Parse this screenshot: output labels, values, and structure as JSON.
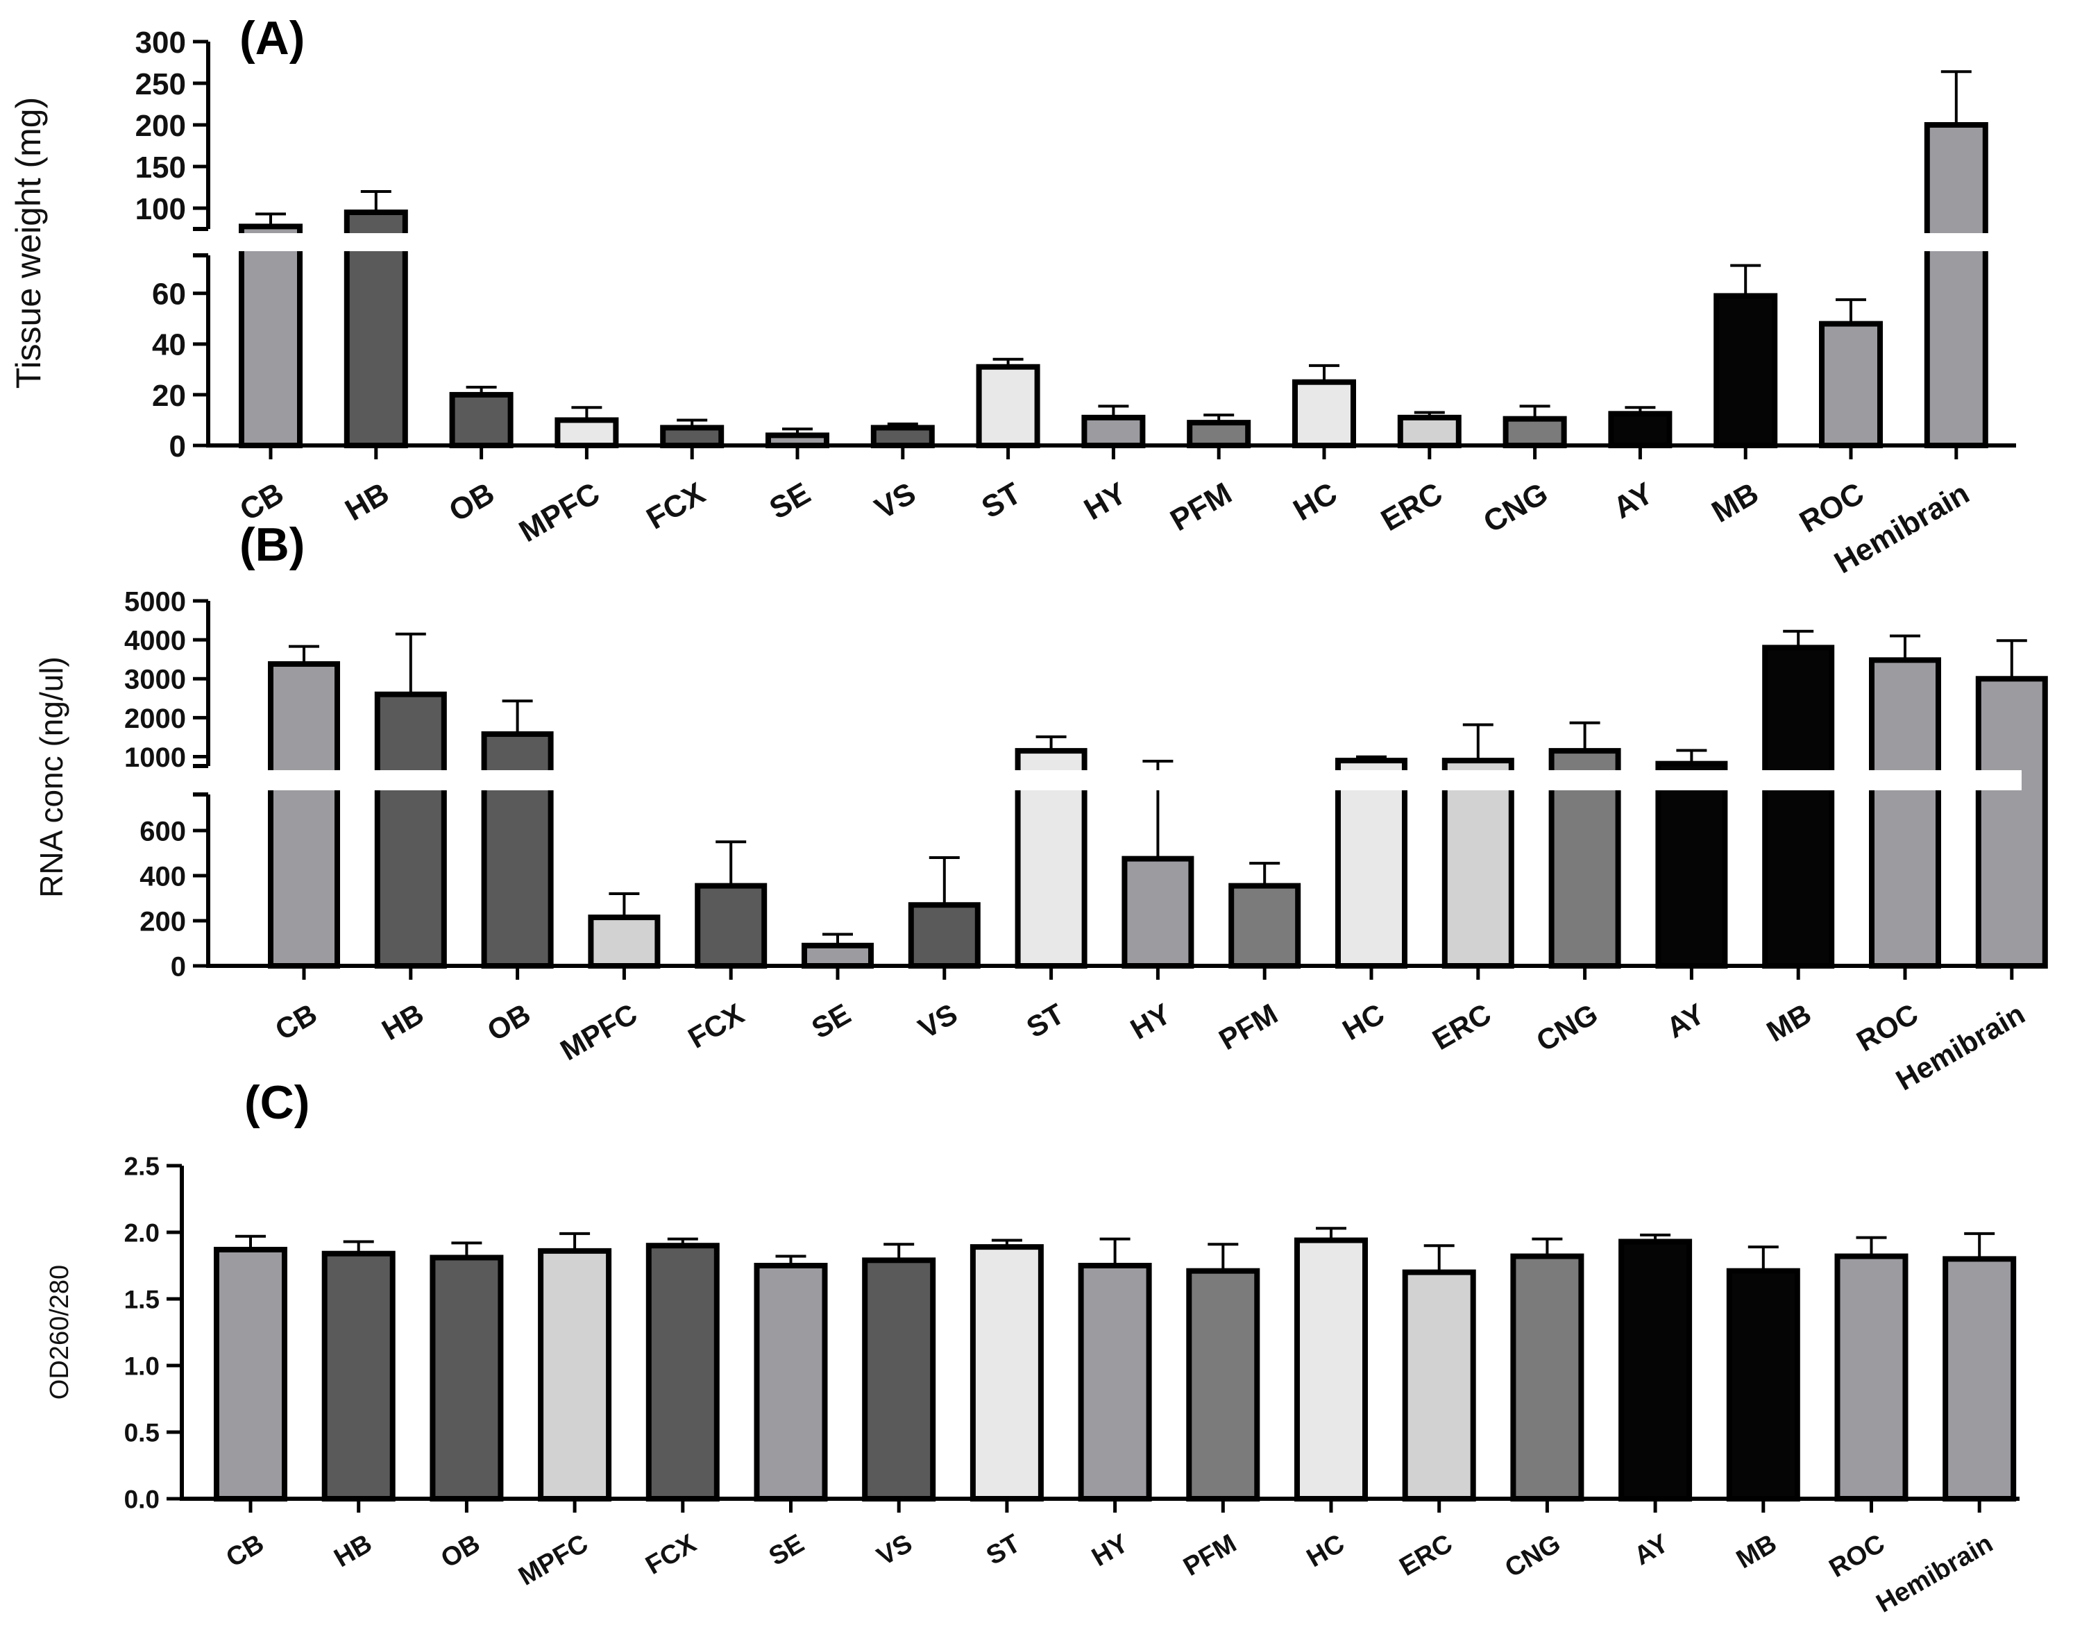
{
  "figure": {
    "colors": {
      "light": "#e8e8e8",
      "lightgray": "#d2d2d2",
      "medium": "#9b9ba0",
      "midgray": "#7b7b7b",
      "dark": "#5a5a5a",
      "black": "#050505"
    }
  },
  "chart_data": [
    {
      "type": "bar",
      "panel_label": "(A)",
      "ylabel": "Tissue weight (mg)",
      "categories": [
        "CB",
        "HB",
        "OB",
        "MPFC",
        "FCX",
        "SE",
        "VS",
        "ST",
        "HY",
        "PFM",
        "HC",
        "ERC",
        "CNG",
        "AY",
        "MB",
        "ROC",
        "Hemibrain"
      ],
      "values": [
        78,
        95,
        20,
        10,
        7,
        4,
        7,
        31,
        11,
        9,
        25,
        11,
        10.5,
        12.5,
        59,
        48,
        200
      ],
      "errors": [
        15,
        25,
        3,
        5,
        3,
        2.5,
        1.5,
        3,
        4.5,
        3,
        6.5,
        2,
        5,
        2.5,
        12,
        9.5,
        64
      ],
      "colors": [
        "medium",
        "dark",
        "dark",
        "light",
        "dark",
        "medium",
        "dark",
        "light",
        "medium",
        "midgray",
        "light",
        "lightgray",
        "midgray",
        "black",
        "black",
        "medium",
        "medium"
      ],
      "axis_break": true,
      "ylim_lower": [
        0,
        75
      ],
      "ylim_upper": [
        75,
        300
      ],
      "yticks_lower": [
        "0",
        "20",
        "40",
        "60"
      ],
      "yticks_upper": [
        "100",
        "150",
        "200",
        "250",
        "300"
      ]
    },
    {
      "type": "bar",
      "panel_label": "(B)",
      "ylabel": "RNA conc (ng/ul)",
      "categories": [
        "CB",
        "HB",
        "OB",
        "MPFC",
        "FCX",
        "SE",
        "VS",
        "ST",
        "HY",
        "PFM",
        "HC",
        "ERC",
        "CNG",
        "AY",
        "MB",
        "ROC",
        "Hemibrain"
      ],
      "values": [
        3380,
        2600,
        1580,
        215,
        355,
        90,
        270,
        1150,
        475,
        355,
        900,
        900,
        1150,
        820,
        3800,
        3480,
        3000
      ],
      "errors": [
        450,
        1550,
        850,
        105,
        195,
        50,
        210,
        360,
        410,
        100,
        95,
        920,
        720,
        340,
        420,
        620,
        980
      ],
      "colors": [
        "medium",
        "dark",
        "dark",
        "lightgray",
        "dark",
        "medium",
        "dark",
        "light",
        "medium",
        "midgray",
        "light",
        "lightgray",
        "midgray",
        "black",
        "black",
        "medium",
        "medium"
      ],
      "axis_break": true,
      "ylim_lower": [
        0,
        760
      ],
      "ylim_upper": [
        760,
        5000
      ],
      "yticks_lower": [
        "0",
        "200",
        "400",
        "600"
      ],
      "yticks_upper": [
        "1000",
        "2000",
        "3000",
        "4000",
        "5000"
      ]
    },
    {
      "type": "bar",
      "panel_label": "(C)",
      "ylabel": "OD260/280",
      "categories": [
        "CB",
        "HB",
        "OB",
        "MPFC",
        "FCX",
        "SE",
        "VS",
        "ST",
        "HY",
        "PFM",
        "HC",
        "ERC",
        "CNG",
        "AY",
        "MB",
        "ROC",
        "Hemibrain"
      ],
      "values": [
        1.87,
        1.84,
        1.81,
        1.86,
        1.9,
        1.75,
        1.79,
        1.89,
        1.75,
        1.71,
        1.94,
        1.7,
        1.82,
        1.93,
        1.71,
        1.82,
        1.8
      ],
      "errors": [
        0.1,
        0.09,
        0.11,
        0.13,
        0.05,
        0.07,
        0.12,
        0.05,
        0.2,
        0.2,
        0.09,
        0.2,
        0.13,
        0.05,
        0.18,
        0.14,
        0.19
      ],
      "colors": [
        "medium",
        "dark",
        "dark",
        "lightgray",
        "dark",
        "medium",
        "dark",
        "light",
        "medium",
        "midgray",
        "light",
        "lightgray",
        "midgray",
        "black",
        "black",
        "medium",
        "medium"
      ],
      "axis_break": false,
      "ylim": [
        0,
        2.5
      ],
      "yticks": [
        "0.0",
        "0.5",
        "1.0",
        "1.5",
        "2.0",
        "2.5"
      ]
    }
  ]
}
